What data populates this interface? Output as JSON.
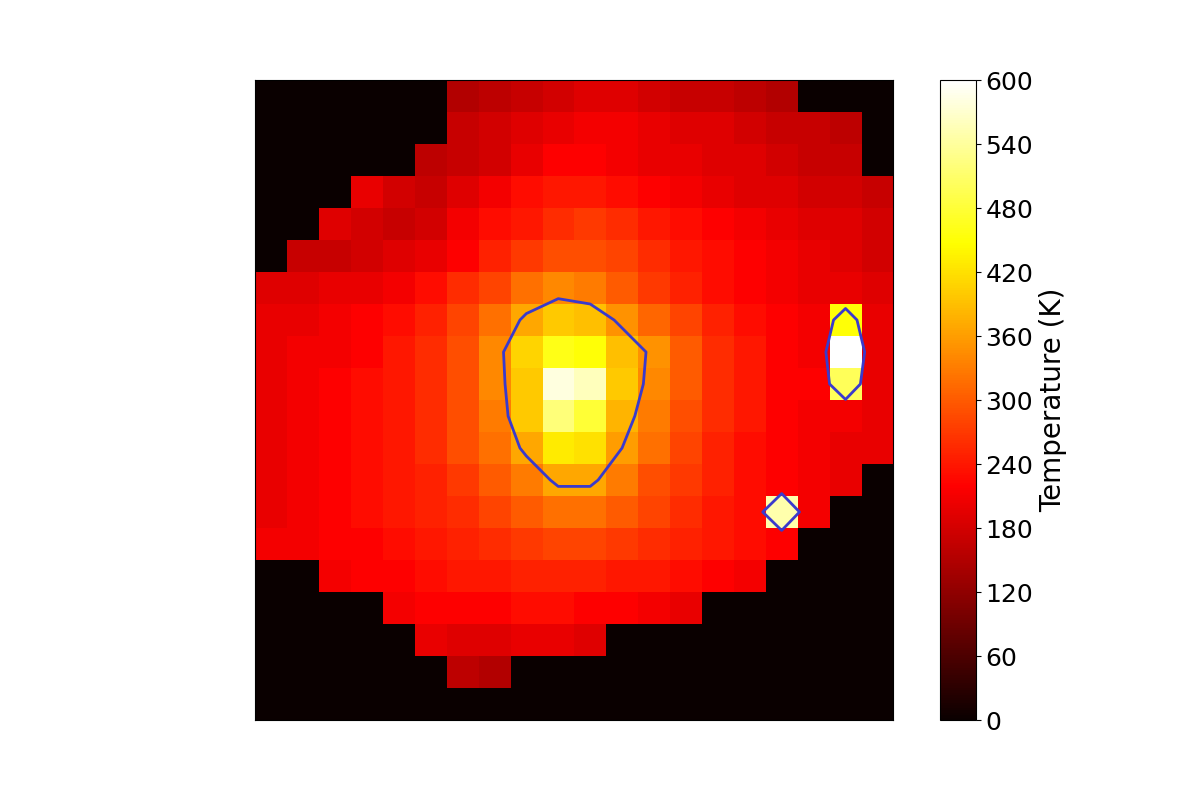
{
  "chart_data": {
    "type": "heatmap",
    "color": "hot",
    "tick_labels": false,
    "colorbar_label": "Temperature (K)",
    "colorbar_range": [
      0,
      600
    ],
    "colorbar_ticks": [
      0,
      60,
      120,
      180,
      240,
      300,
      360,
      420,
      480,
      540,
      600
    ],
    "contour_levels": [
      360
    ],
    "cells": [
      [
        0,
        0,
        0,
        0,
        0,
        0,
        150,
        160,
        170,
        180,
        190,
        190,
        180,
        170,
        170,
        160,
        150,
        0,
        0,
        0
      ],
      [
        0,
        0,
        0,
        0,
        0,
        0,
        170,
        180,
        190,
        200,
        210,
        210,
        200,
        190,
        190,
        180,
        170,
        170,
        160,
        0
      ],
      [
        0,
        0,
        0,
        0,
        0,
        160,
        170,
        180,
        200,
        220,
        220,
        210,
        200,
        200,
        190,
        190,
        180,
        170,
        170,
        0
      ],
      [
        0,
        0,
        0,
        200,
        180,
        170,
        190,
        210,
        230,
        240,
        240,
        230,
        220,
        210,
        200,
        190,
        190,
        180,
        180,
        170
      ],
      [
        0,
        0,
        190,
        180,
        170,
        180,
        210,
        230,
        240,
        260,
        270,
        260,
        240,
        230,
        220,
        210,
        200,
        190,
        190,
        180
      ],
      [
        0,
        170,
        170,
        180,
        190,
        200,
        220,
        250,
        270,
        290,
        290,
        280,
        260,
        240,
        230,
        220,
        210,
        200,
        190,
        180
      ],
      [
        190,
        190,
        200,
        200,
        210,
        230,
        260,
        280,
        320,
        340,
        330,
        300,
        270,
        250,
        230,
        220,
        210,
        200,
        200,
        190
      ],
      [
        200,
        200,
        210,
        220,
        230,
        250,
        280,
        320,
        370,
        400,
        390,
        350,
        310,
        280,
        250,
        230,
        220,
        210,
        450,
        200
      ],
      [
        200,
        210,
        210,
        220,
        240,
        260,
        290,
        340,
        410,
        460,
        450,
        390,
        350,
        300,
        260,
        240,
        220,
        210,
        600,
        200
      ],
      [
        200,
        210,
        220,
        230,
        240,
        260,
        290,
        340,
        400,
        580,
        560,
        400,
        340,
        300,
        260,
        240,
        220,
        220,
        500,
        200
      ],
      [
        200,
        210,
        220,
        230,
        240,
        260,
        290,
        330,
        400,
        520,
        480,
        380,
        330,
        290,
        260,
        240,
        220,
        210,
        210,
        200
      ],
      [
        200,
        210,
        220,
        230,
        240,
        260,
        290,
        320,
        370,
        430,
        420,
        360,
        320,
        280,
        250,
        230,
        220,
        210,
        200,
        200
      ],
      [
        200,
        210,
        220,
        230,
        240,
        250,
        270,
        300,
        330,
        370,
        370,
        330,
        290,
        270,
        250,
        230,
        220,
        210,
        200,
        0
      ],
      [
        200,
        210,
        220,
        230,
        240,
        250,
        260,
        280,
        300,
        320,
        320,
        300,
        280,
        260,
        240,
        230,
        550,
        210,
        0,
        0
      ],
      [
        210,
        210,
        220,
        220,
        230,
        240,
        250,
        260,
        270,
        280,
        280,
        270,
        260,
        250,
        240,
        230,
        220,
        0,
        0,
        0
      ],
      [
        0,
        0,
        210,
        220,
        220,
        230,
        240,
        240,
        250,
        250,
        250,
        240,
        240,
        230,
        220,
        210,
        0,
        0,
        0,
        0
      ],
      [
        0,
        0,
        0,
        0,
        210,
        220,
        220,
        220,
        230,
        230,
        220,
        220,
        210,
        200,
        0,
        0,
        0,
        0,
        0,
        0
      ],
      [
        0,
        0,
        0,
        0,
        0,
        200,
        190,
        190,
        200,
        200,
        190,
        0,
        0,
        0,
        0,
        0,
        0,
        0,
        0,
        0
      ],
      [
        0,
        0,
        0,
        0,
        0,
        0,
        160,
        150,
        0,
        0,
        0,
        0,
        0,
        0,
        0,
        0,
        0,
        0,
        0,
        0
      ],
      [
        0,
        0,
        0,
        0,
        0,
        0,
        0,
        0,
        0,
        0,
        0,
        0,
        0,
        0,
        0,
        0,
        0,
        0,
        0,
        0
      ]
    ]
  }
}
